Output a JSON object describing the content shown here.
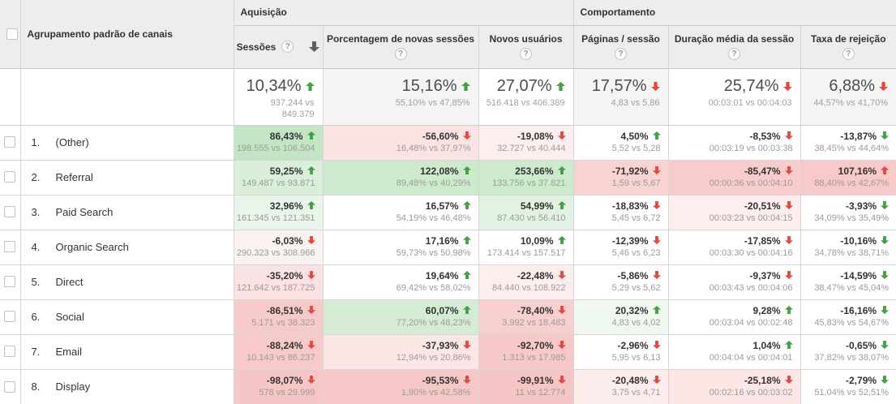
{
  "colors": {
    "positive_arrow": "#3fa142",
    "negative_arrow": "#e8453c",
    "header_bg": "#ededed",
    "summary_alt_bg": "#f4f4f4"
  },
  "header": {
    "channel_column_label": "Agrupamento padrão de canais",
    "groups": [
      {
        "label": "Aquisição"
      },
      {
        "label": "Comportamento"
      }
    ],
    "metrics": [
      {
        "label": "Sessões",
        "sorted": "descending"
      },
      {
        "label": "Porcentagem de novas sessões"
      },
      {
        "label": "Novos usuários"
      },
      {
        "label": "Páginas / sessão"
      },
      {
        "label": "Duração média da sessão"
      },
      {
        "label": "Taxa de rejeição"
      }
    ]
  },
  "summary": {
    "cells": [
      {
        "value": "10,34%",
        "sub": "937.244 vs 849.379",
        "dir": "up",
        "tone": "good",
        "bg": "#ffffff"
      },
      {
        "value": "15,16%",
        "sub": "55,10% vs 47,85%",
        "dir": "up",
        "tone": "good",
        "bg": "#f4f4f4"
      },
      {
        "value": "27,07%",
        "sub": "516.418 vs 406.389",
        "dir": "up",
        "tone": "good",
        "bg": "#ffffff"
      },
      {
        "value": "17,57%",
        "sub": "4,83 vs 5,86",
        "dir": "down",
        "tone": "bad",
        "bg": "#f4f4f4"
      },
      {
        "value": "25,74%",
        "sub": "00:03:01 vs 00:04:03",
        "dir": "down",
        "tone": "bad",
        "bg": "#ffffff"
      },
      {
        "value": "6,88%",
        "sub": "44,57% vs 41,70%",
        "dir": "down",
        "tone": "bad",
        "bg": "#f4f4f4"
      }
    ]
  },
  "rows": [
    {
      "num": "1.",
      "channel": "(Other)",
      "cells": [
        {
          "value": "86,43%",
          "sub": "198.555 vs 106.504",
          "dir": "up",
          "tone": "good",
          "bg": "#c2e5c3"
        },
        {
          "value": "-56,60%",
          "sub": "16,48% vs 37,97%",
          "dir": "down",
          "tone": "bad",
          "bg": "#fbe3e3"
        },
        {
          "value": "-19,08%",
          "sub": "32.727 vs 40.444",
          "dir": "down",
          "tone": "bad",
          "bg": "#fdeeee"
        },
        {
          "value": "4,50%",
          "sub": "5,52 vs 5,28",
          "dir": "up",
          "tone": "good",
          "bg": "#ffffff"
        },
        {
          "value": "-8,53%",
          "sub": "00:03:19 vs 00:03:38",
          "dir": "down",
          "tone": "bad",
          "bg": "#ffffff"
        },
        {
          "value": "-13,87%",
          "sub": "38,45% vs 44,64%",
          "dir": "down",
          "tone": "good",
          "bg": "#ffffff"
        }
      ]
    },
    {
      "num": "2.",
      "channel": "Referral",
      "cells": [
        {
          "value": "59,25%",
          "sub": "149.487 vs 93.871",
          "dir": "up",
          "tone": "good",
          "bg": "#d9efd9"
        },
        {
          "value": "122,08%",
          "sub": "89,48% vs 40,29%",
          "dir": "up",
          "tone": "good",
          "bg": "#cdeacd"
        },
        {
          "value": "253,66%",
          "sub": "133.756 vs 37.821",
          "dir": "up",
          "tone": "good",
          "bg": "#cdeacd"
        },
        {
          "value": "-71,92%",
          "sub": "1,59 vs 5,67",
          "dir": "down",
          "tone": "bad",
          "bg": "#f9d2d2"
        },
        {
          "value": "-85,47%",
          "sub": "00:00:36 vs 00:04:10",
          "dir": "down",
          "tone": "bad",
          "bg": "#f8cccc"
        },
        {
          "value": "107,16%",
          "sub": "88,40% vs 42,67%",
          "dir": "up",
          "tone": "bad",
          "bg": "#f7c9c9"
        }
      ]
    },
    {
      "num": "3.",
      "channel": "Paid Search",
      "cells": [
        {
          "value": "32,96%",
          "sub": "161.345 vs 121.351",
          "dir": "up",
          "tone": "good",
          "bg": "#e8f5e8"
        },
        {
          "value": "16,57%",
          "sub": "54,19% vs 46,48%",
          "dir": "up",
          "tone": "good",
          "bg": "#ffffff"
        },
        {
          "value": "54,99%",
          "sub": "87.430 vs 56.410",
          "dir": "up",
          "tone": "good",
          "bg": "#e2f2e2"
        },
        {
          "value": "-18,83%",
          "sub": "5,45 vs 6,72",
          "dir": "down",
          "tone": "bad",
          "bg": "#ffffff"
        },
        {
          "value": "-20,51%",
          "sub": "00:03:23 vs 00:04:15",
          "dir": "down",
          "tone": "bad",
          "bg": "#fdeded"
        },
        {
          "value": "-3,93%",
          "sub": "34,09% vs 35,49%",
          "dir": "down",
          "tone": "good",
          "bg": "#ffffff"
        }
      ]
    },
    {
      "num": "4.",
      "channel": "Organic Search",
      "cells": [
        {
          "value": "-6,03%",
          "sub": "290.323 vs 308.966",
          "dir": "down",
          "tone": "bad",
          "bg": "#faf1f1"
        },
        {
          "value": "17,16%",
          "sub": "59,73% vs 50,98%",
          "dir": "up",
          "tone": "good",
          "bg": "#ffffff"
        },
        {
          "value": "10,09%",
          "sub": "173.414 vs 157.517",
          "dir": "up",
          "tone": "good",
          "bg": "#ffffff"
        },
        {
          "value": "-12,39%",
          "sub": "5,46 vs 6,23",
          "dir": "down",
          "tone": "bad",
          "bg": "#ffffff"
        },
        {
          "value": "-17,85%",
          "sub": "00:03:30 vs 00:04:16",
          "dir": "down",
          "tone": "bad",
          "bg": "#ffffff"
        },
        {
          "value": "-10,16%",
          "sub": "34,78% vs 38,71%",
          "dir": "down",
          "tone": "good",
          "bg": "#ffffff"
        }
      ]
    },
    {
      "num": "5.",
      "channel": "Direct",
      "cells": [
        {
          "value": "-35,20%",
          "sub": "121.642 vs 187.725",
          "dir": "down",
          "tone": "bad",
          "bg": "#fbe2e2"
        },
        {
          "value": "19,64%",
          "sub": "69,42% vs 58,02%",
          "dir": "up",
          "tone": "good",
          "bg": "#ffffff"
        },
        {
          "value": "-22,48%",
          "sub": "84.440 vs 108.922",
          "dir": "down",
          "tone": "bad",
          "bg": "#fdeeee"
        },
        {
          "value": "-5,86%",
          "sub": "5,29 vs 5,62",
          "dir": "down",
          "tone": "bad",
          "bg": "#ffffff"
        },
        {
          "value": "-9,37%",
          "sub": "00:03:43 vs 00:04:06",
          "dir": "down",
          "tone": "bad",
          "bg": "#ffffff"
        },
        {
          "value": "-14,59%",
          "sub": "38,47% vs 45,04%",
          "dir": "down",
          "tone": "good",
          "bg": "#ffffff"
        }
      ]
    },
    {
      "num": "6.",
      "channel": "Social",
      "cells": [
        {
          "value": "-86,51%",
          "sub": "5.171 vs 38.323",
          "dir": "down",
          "tone": "bad",
          "bg": "#f7caca"
        },
        {
          "value": "60,07%",
          "sub": "77,20% vs 48,23%",
          "dir": "up",
          "tone": "good",
          "bg": "#d3ecd3"
        },
        {
          "value": "-78,40%",
          "sub": "3.992 vs 18.483",
          "dir": "down",
          "tone": "bad",
          "bg": "#f8cfcf"
        },
        {
          "value": "20,32%",
          "sub": "4,83 vs 4,02",
          "dir": "up",
          "tone": "good",
          "bg": "#eef8ee"
        },
        {
          "value": "9,28%",
          "sub": "00:03:04 vs 00:02:48",
          "dir": "up",
          "tone": "good",
          "bg": "#ffffff"
        },
        {
          "value": "-16,16%",
          "sub": "45,83% vs 54,67%",
          "dir": "down",
          "tone": "good",
          "bg": "#ffffff"
        }
      ]
    },
    {
      "num": "7.",
      "channel": "Email",
      "cells": [
        {
          "value": "-88,24%",
          "sub": "10.143 vs 86.237",
          "dir": "down",
          "tone": "bad",
          "bg": "#f7c9c9"
        },
        {
          "value": "-37,93%",
          "sub": "12,94% vs 20,86%",
          "dir": "down",
          "tone": "bad",
          "bg": "#fbe6e6"
        },
        {
          "value": "-92,70%",
          "sub": "1.313 vs 17.985",
          "dir": "down",
          "tone": "bad",
          "bg": "#f7c8c8"
        },
        {
          "value": "-2,96%",
          "sub": "5,95 vs 6,13",
          "dir": "down",
          "tone": "bad",
          "bg": "#ffffff"
        },
        {
          "value": "1,04%",
          "sub": "00:04:04 vs 00:04:01",
          "dir": "up",
          "tone": "good",
          "bg": "#ffffff"
        },
        {
          "value": "-0,65%",
          "sub": "37,82% vs 38,07%",
          "dir": "down",
          "tone": "good",
          "bg": "#ffffff"
        }
      ]
    },
    {
      "num": "8.",
      "channel": "Display",
      "cells": [
        {
          "value": "-98,07%",
          "sub": "578 vs 29.999",
          "dir": "down",
          "tone": "bad",
          "bg": "#f6c6c6"
        },
        {
          "value": "-95,53%",
          "sub": "1,90% vs 42,58%",
          "dir": "down",
          "tone": "bad",
          "bg": "#f6c7c7"
        },
        {
          "value": "-99,91%",
          "sub": "11 vs 12.774",
          "dir": "down",
          "tone": "bad",
          "bg": "#f6c6c6"
        },
        {
          "value": "-20,48%",
          "sub": "3,75 vs 4,71",
          "dir": "down",
          "tone": "bad",
          "bg": "#fdecec"
        },
        {
          "value": "-25,18%",
          "sub": "00:02:16 vs 00:03:02",
          "dir": "down",
          "tone": "bad",
          "bg": "#fce5e5"
        },
        {
          "value": "-2,79%",
          "sub": "51,04% vs 52,51%",
          "dir": "down",
          "tone": "good",
          "bg": "#ffffff"
        }
      ]
    }
  ]
}
